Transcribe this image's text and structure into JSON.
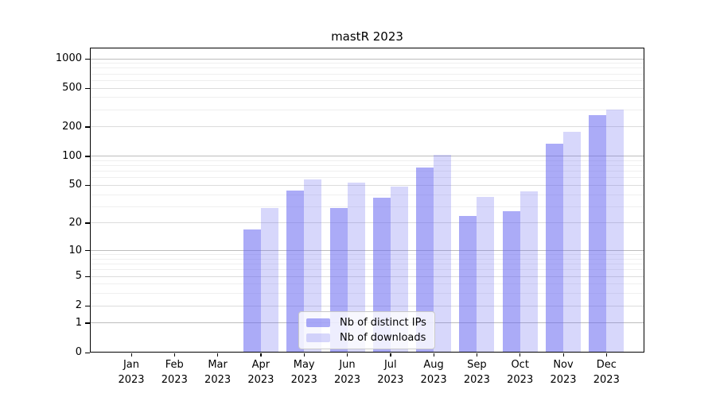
{
  "chart_data": {
    "type": "bar",
    "title": "mastR 2023",
    "yscale": "log1p",
    "grid": true,
    "legend_position": "lower center",
    "categories": [
      "Jan\n2023",
      "Feb\n2023",
      "Mar\n2023",
      "Apr\n2023",
      "May\n2023",
      "Jun\n2023",
      "Jul\n2023",
      "Aug\n2023",
      "Sep\n2023",
      "Oct\n2023",
      "Nov\n2023",
      "Dec\n2023"
    ],
    "series": [
      {
        "name": "Nb of distinct IPs",
        "color": "rgba(102,102,240,0.55)",
        "values": [
          0,
          0,
          0,
          17,
          44,
          29,
          37,
          76,
          24,
          27,
          135,
          265
        ]
      },
      {
        "name": "Nb of downloads",
        "color": "rgba(102,102,240,0.26)",
        "values": [
          0,
          0,
          0,
          29,
          58,
          53,
          49,
          103,
          38,
          43,
          180,
          300
        ]
      }
    ],
    "y_ticks": [
      0,
      1,
      2,
      5,
      10,
      20,
      50,
      100,
      200,
      500,
      1000
    ],
    "y_minor_gridlines": [
      3,
      4,
      6,
      7,
      8,
      9,
      30,
      40,
      60,
      70,
      80,
      90,
      300,
      400,
      600,
      700,
      800,
      900
    ],
    "ylim": [
      0,
      1300
    ]
  },
  "colors": {
    "background": "#ffffff",
    "text": "#000000",
    "frame": "#000000",
    "grid_major": "#bdbdbd",
    "grid_mid": "#dcdcdc",
    "grid_minor": "#efefef",
    "legend_border": "#c9c9c9",
    "legend_bg": "rgba(255,255,255,0.8)"
  }
}
